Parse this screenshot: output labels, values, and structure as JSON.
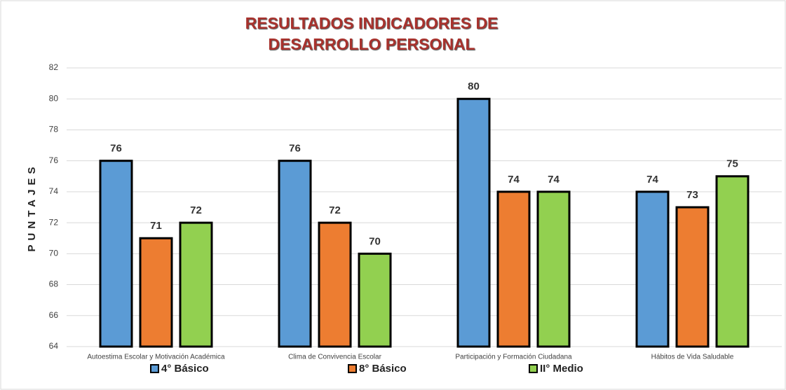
{
  "chart_data": {
    "type": "bar",
    "title": "RESULTADOS INDICADORES DE DESARROLLO PERSONAL",
    "y_label": "PUNTAJES",
    "categories": [
      "Autoestima Escolar y Motivación Académica",
      "Clima de Convivencia Escolar",
      "Participación y Formación Ciudadana",
      "Hábitos de Vida Saludable"
    ],
    "series": [
      {
        "name": "4° Básico",
        "color": "#5b9bd5",
        "values": [
          76,
          76,
          80,
          74
        ]
      },
      {
        "name": "8° Básico",
        "color": "#ed7d31",
        "values": [
          71,
          72,
          74,
          73
        ]
      },
      {
        "name": "II° Medio",
        "color": "#92d050",
        "values": [
          72,
          70,
          74,
          75
        ]
      }
    ],
    "ylim": [
      64,
      82
    ],
    "yticks": [
      64,
      66,
      68,
      70,
      72,
      74,
      76,
      78,
      80,
      82
    ],
    "grid": true,
    "legend": "bottom"
  }
}
